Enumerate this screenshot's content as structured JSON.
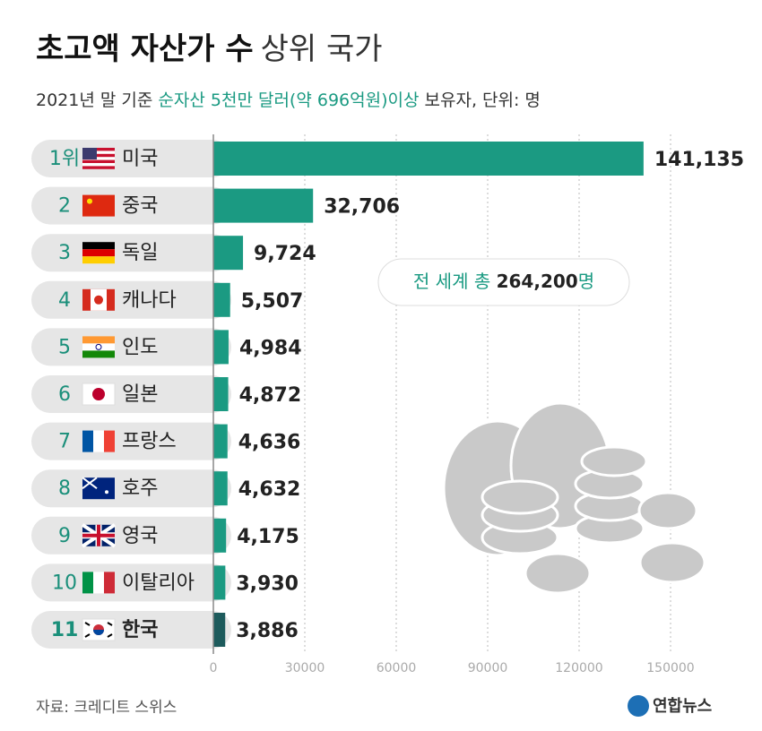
{
  "chart_data": {
    "type": "bar",
    "orientation": "horizontal",
    "title_bold": "초고액 자산가 수",
    "title_rest": "상위 국가",
    "subtitle_pre": "2021년 말 기준 ",
    "subtitle_highlight": "순자산 5천만 달러(약 696억원)이상",
    "subtitle_post": " 보유자, 단위: 명",
    "ranks": [
      "1위",
      "2",
      "3",
      "4",
      "5",
      "6",
      "7",
      "8",
      "9",
      "10",
      "11"
    ],
    "categories": [
      "미국",
      "중국",
      "독일",
      "캐나다",
      "인도",
      "일본",
      "프랑스",
      "호주",
      "영국",
      "이탈리아",
      "한국"
    ],
    "values": [
      141135,
      32706,
      9724,
      5507,
      4984,
      4872,
      4636,
      4632,
      4175,
      3930,
      3886
    ],
    "value_labels": [
      "141,135",
      "32,706",
      "9,724",
      "5,507",
      "4,984",
      "4,872",
      "4,636",
      "4,632",
      "4,175",
      "3,930",
      "3,886"
    ],
    "colors": [
      "#1b9a82",
      "#1b9a82",
      "#1b9a82",
      "#1b9a82",
      "#1b9a82",
      "#1b9a82",
      "#1b9a82",
      "#1b9a82",
      "#1b9a82",
      "#1b9a82",
      "#1d5b5c"
    ],
    "xlim": [
      0,
      170000
    ],
    "xticks": [
      0,
      30000,
      60000,
      90000,
      120000,
      150000
    ],
    "grid": true,
    "callout_pre": "전 세계 총 ",
    "callout_value": "264,200",
    "callout_post": "명",
    "source": "자료: 크레디트 스위스",
    "logo": "연합뉴스"
  }
}
